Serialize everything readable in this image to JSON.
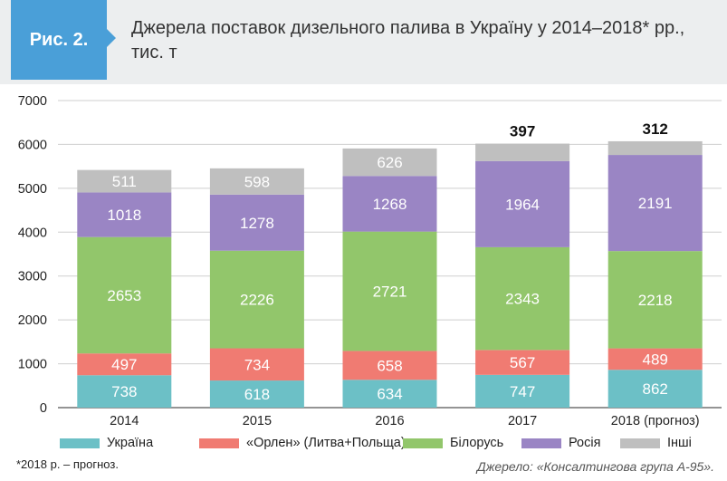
{
  "figure_label": "Рис. 2.",
  "title_line1": "Джерела поставок дизельного палива в Україну у 2014–2018* рр.,",
  "title_line2": "тис. т",
  "colors": {
    "header_bg": "#eceeef",
    "badge": "#4a9fd8",
    "ukraine": "#6cc0c6",
    "orlen": "#f07b72",
    "belarus": "#92c66b",
    "russia": "#9a85c4",
    "other": "#bfbfbf"
  },
  "chart_data": {
    "type": "bar",
    "stacked": true,
    "categories": [
      "2014",
      "2015",
      "2016",
      "2017",
      "2018 (прогноз)"
    ],
    "series": [
      {
        "name": "Україна",
        "color_key": "ukraine",
        "values": [
          738,
          618,
          634,
          747,
          862
        ]
      },
      {
        "name": "«Орлен» (Литва+Польща)",
        "color_key": "orlen",
        "values": [
          497,
          734,
          658,
          567,
          489
        ]
      },
      {
        "name": "Білорусь",
        "color_key": "belarus",
        "values": [
          2653,
          2226,
          2721,
          2343,
          2218
        ]
      },
      {
        "name": "Росія",
        "color_key": "russia",
        "values": [
          1018,
          1278,
          1268,
          1964,
          2191
        ]
      },
      {
        "name": "Інші",
        "color_key": "other",
        "values": [
          511,
          598,
          626,
          397,
          312
        ]
      }
    ],
    "other_label_above_bar": [
      false,
      false,
      false,
      true,
      true
    ],
    "ylim": [
      0,
      7000
    ],
    "yticks": [
      "0",
      "1000",
      "2000",
      "3000",
      "4000",
      "5000",
      "6000",
      "7000"
    ],
    "grid": true,
    "legend_position": "bottom"
  },
  "footnote": "*2018 р. – прогноз.",
  "source": "Джерело: «Консалтингова група А-95»."
}
